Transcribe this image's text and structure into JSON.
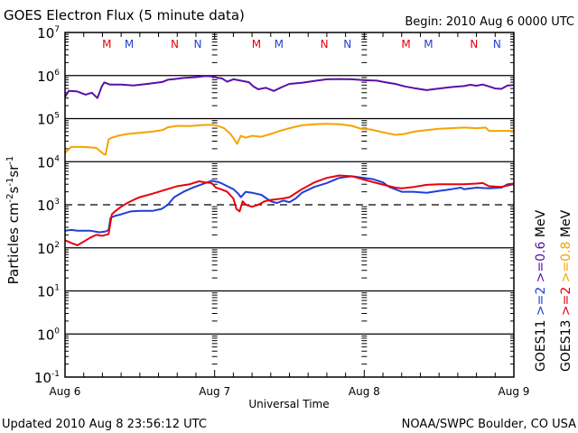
{
  "chart_data": {
    "type": "line",
    "title": "GOES Electron Flux (5 minute data)",
    "begin_label": "Begin: 2010 Aug 6 0000 UTC",
    "xlabel": "Universal Time",
    "ylabel": "Particles cm⁻²s⁻¹sr⁻¹",
    "yscale": "log",
    "ylim": [
      0.1,
      10000000
    ],
    "xlim_hours": [
      0,
      72
    ],
    "y_ticks": [
      {
        "base": "10",
        "exp": "7",
        "value": 10000000
      },
      {
        "base": "10",
        "exp": "6",
        "value": 1000000
      },
      {
        "base": "10",
        "exp": "5",
        "value": 100000
      },
      {
        "base": "10",
        "exp": "4",
        "value": 10000
      },
      {
        "base": "10",
        "exp": "3",
        "value": 1000
      },
      {
        "base": "10",
        "exp": "2",
        "value": 100
      },
      {
        "base": "10",
        "exp": "1",
        "value": 10
      },
      {
        "base": "10",
        "exp": "0",
        "value": 1
      },
      {
        "base": "10",
        "exp": "-1",
        "value": 0.1
      }
    ],
    "x_ticks": [
      {
        "label": "Aug 6",
        "hour": 0
      },
      {
        "label": "Aug 7",
        "hour": 24
      },
      {
        "label": "Aug 8",
        "hour": 48
      },
      {
        "label": "Aug 9",
        "hour": 72
      }
    ],
    "threshold_line": {
      "value": 1000,
      "style": "dashed"
    },
    "markers": [
      {
        "label": "M",
        "color": "#e8000b",
        "hour": 6.7
      },
      {
        "label": "M",
        "color": "#1f3fd6",
        "hour": 10.3
      },
      {
        "label": "N",
        "color": "#e8000b",
        "hour": 17.6
      },
      {
        "label": "N",
        "color": "#1f3fd6",
        "hour": 21.3
      },
      {
        "label": "M",
        "color": "#e8000b",
        "hour": 30.7
      },
      {
        "label": "M",
        "color": "#1f3fd6",
        "hour": 34.3
      },
      {
        "label": "N",
        "color": "#e8000b",
        "hour": 41.6
      },
      {
        "label": "N",
        "color": "#1f3fd6",
        "hour": 45.3
      },
      {
        "label": "M",
        "color": "#e8000b",
        "hour": 54.7
      },
      {
        "label": "M",
        "color": "#1f3fd6",
        "hour": 58.3
      },
      {
        "label": "N",
        "color": "#e8000b",
        "hour": 65.6
      },
      {
        "label": "N",
        "color": "#1f3fd6",
        "hour": 69.3
      }
    ],
    "legend_placement": "right-vertical",
    "legend": {
      "col1": [
        {
          "text": "GOES11",
          "color": "#000000"
        },
        {
          "text": ">=2",
          "color": "#1f3fd6"
        },
        {
          "text": ">=0.6",
          "color": "#5a0fa8"
        },
        {
          "text": "MeV",
          "color": "#000000"
        }
      ],
      "col2": [
        {
          "text": "GOES13",
          "color": "#000000"
        },
        {
          "text": ">=2",
          "color": "#e8000b"
        },
        {
          "text": ">=0.8",
          "color": "#f5a300"
        },
        {
          "text": "MeV",
          "color": "#000000"
        }
      ]
    },
    "series": [
      {
        "name": "GOES11 >=0.6 MeV",
        "color": "#5a0fa8",
        "hours": [
          0,
          0.6,
          1.9,
          3.3,
          4.3,
          5.2,
          5.9,
          6.3,
          7.2,
          9,
          11,
          13.5,
          15.6,
          16.5,
          17.6,
          19,
          21,
          22.5,
          23.8,
          24.5,
          25.2,
          26,
          27,
          27.8,
          29.5,
          30.2,
          31,
          32.2,
          33.5,
          34.8,
          36,
          38,
          40,
          42,
          44,
          46,
          48,
          50,
          51.5,
          53,
          54.5,
          56,
          58,
          60,
          62,
          64,
          65,
          66,
          67,
          68,
          69,
          70,
          71,
          72
        ],
        "values": [
          320000,
          440000,
          430000,
          360000,
          400000,
          300000,
          560000,
          690000,
          620000,
          620000,
          590000,
          650000,
          710000,
          800000,
          830000,
          880000,
          920000,
          980000,
          950000,
          880000,
          860000,
          720000,
          820000,
          780000,
          700000,
          560000,
          480000,
          520000,
          440000,
          540000,
          640000,
          680000,
          750000,
          820000,
          830000,
          820000,
          780000,
          760000,
          690000,
          640000,
          560000,
          510000,
          460000,
          500000,
          540000,
          570000,
          610000,
          580000,
          620000,
          560000,
          500000,
          490000,
          590000,
          600000
        ]
      },
      {
        "name": "GOES13 >=0.8 MeV",
        "color": "#f5a300",
        "hours": [
          0,
          1,
          3,
          5,
          6.2,
          6.5,
          7,
          7.5,
          8.5,
          10,
          12,
          14,
          15.6,
          16.5,
          18,
          20,
          22,
          23.5,
          24.5,
          25.5,
          26.5,
          27.2,
          27.6,
          28.2,
          29,
          30,
          31.5,
          33,
          34.5,
          36,
          38,
          40,
          42,
          44,
          46,
          47.5,
          49,
          51,
          53,
          54.5,
          56,
          58,
          60,
          62,
          64,
          66,
          67.5,
          68,
          70,
          72
        ],
        "values": [
          16000,
          22000,
          22000,
          21000,
          15000,
          14500,
          33000,
          36000,
          40000,
          44000,
          47000,
          50000,
          54000,
          63000,
          68000,
          67000,
          71000,
          72000,
          68000,
          60000,
          45000,
          32000,
          26000,
          40000,
          36000,
          40000,
          38000,
          44000,
          52000,
          60000,
          70000,
          74000,
          76000,
          74000,
          68000,
          58000,
          56000,
          48000,
          42000,
          44000,
          50000,
          54000,
          58000,
          60000,
          62000,
          60000,
          62000,
          52000,
          52000,
          52000
        ]
      },
      {
        "name": "GOES11 >=2 MeV",
        "color": "#1f3fd6",
        "hours": [
          0,
          1,
          2,
          4,
          5.5,
          6.5,
          7,
          7.3,
          8,
          9,
          10.5,
          12,
          14,
          15.5,
          16.5,
          17.5,
          19,
          20.5,
          22,
          23.5,
          24.5,
          25,
          26,
          27,
          27.8,
          28.2,
          29,
          30,
          31.5,
          33,
          34,
          35,
          36,
          37,
          38,
          40,
          42,
          44,
          46,
          48,
          49.5,
          51,
          52,
          54,
          56,
          58,
          60,
          62,
          63.5,
          64,
          66,
          68,
          70,
          71,
          72
        ],
        "values": [
          250000,
          260000,
          250000,
          250000,
          230000,
          240000,
          260000,
          500000,
          550000,
          600000,
          700000,
          720000,
          720000,
          800000,
          1000000,
          1500000,
          2000000,
          2500000,
          3000000,
          3600000,
          3400000,
          3200000,
          2700000,
          2300000,
          1800000,
          1500000,
          2000000,
          1900000,
          1700000,
          1200000,
          1100000,
          1250000,
          1150000,
          1400000,
          1900000,
          2600000,
          3200000,
          4200000,
          4600000,
          4200000,
          3900000,
          3300000,
          2600000,
          2000000,
          2000000,
          1900000,
          2100000,
          2300000,
          2500000,
          2300000,
          2500000,
          2400000,
          2500000,
          3000000,
          3100000
        ],
        "scale_note": "values divided by 1000 in script"
      },
      {
        "name": "GOES13 >=2 MeV",
        "color": "#e8000b",
        "hours": [
          0,
          1,
          2,
          3,
          4,
          5,
          6,
          7,
          7.5,
          8,
          9,
          10,
          11,
          12,
          14,
          16,
          18,
          20,
          21.5,
          22.5,
          23.5,
          24.2,
          25,
          26,
          27,
          27.5,
          28,
          28.5,
          29,
          30,
          31,
          32,
          33,
          35,
          36,
          38,
          40,
          42,
          44,
          46,
          47,
          48,
          50,
          52,
          53,
          54,
          56,
          58,
          60,
          62,
          64,
          66,
          67,
          68,
          70,
          72
        ],
        "values": [
          150000,
          130000,
          115000,
          140000,
          170000,
          200000,
          190000,
          210000,
          600000,
          700000,
          900000,
          1100000,
          1300000,
          1500000,
          1800000,
          2200000,
          2700000,
          3000000,
          3500000,
          3300000,
          3200000,
          2500000,
          2300000,
          2000000,
          1400000,
          800000,
          700000,
          1200000,
          1000000,
          900000,
          1000000,
          1200000,
          1300000,
          1400000,
          1500000,
          2300000,
          3300000,
          4200000,
          4800000,
          4600000,
          4200000,
          3800000,
          3200000,
          2700000,
          2500000,
          2400000,
          2600000,
          2900000,
          3000000,
          3000000,
          3000000,
          3100000,
          3200000,
          2700000,
          2600000,
          3000000
        ],
        "scale_note": "values divided by 1000 in script"
      }
    ]
  },
  "footer": {
    "updated": "Updated 2010 Aug  8 23:56:12 UTC",
    "credit": "NOAA/SWPC Boulder, CO USA"
  }
}
